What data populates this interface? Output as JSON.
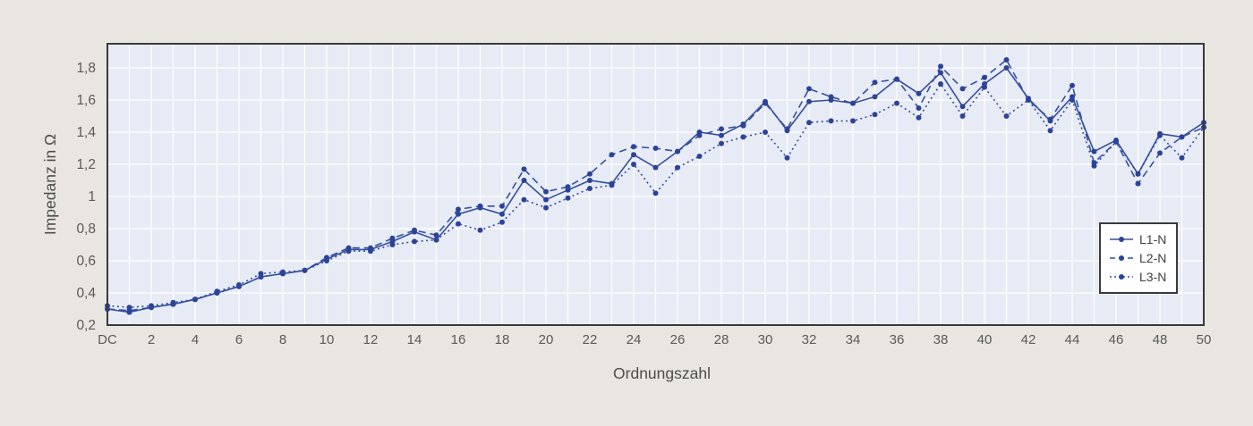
{
  "page": {
    "background_color": "#e9e6e2"
  },
  "chart_data": {
    "type": "line",
    "title": "",
    "xlabel": "Ordnungszahl",
    "ylabel": "Impedanz in Ω",
    "x": [
      0,
      1,
      2,
      3,
      4,
      5,
      6,
      7,
      8,
      9,
      10,
      11,
      12,
      13,
      14,
      15,
      16,
      17,
      18,
      19,
      20,
      21,
      22,
      23,
      24,
      25,
      26,
      27,
      28,
      29,
      30,
      31,
      32,
      33,
      34,
      35,
      36,
      37,
      38,
      39,
      40,
      41,
      42,
      43,
      44,
      45,
      46,
      47,
      48,
      49,
      50
    ],
    "x_tick_positions": [
      0,
      2,
      4,
      6,
      8,
      10,
      12,
      14,
      16,
      18,
      20,
      22,
      24,
      26,
      28,
      30,
      32,
      34,
      36,
      38,
      40,
      42,
      44,
      46,
      48,
      50
    ],
    "x_tick_labels": [
      "DC",
      "2",
      "4",
      "6",
      "8",
      "10",
      "12",
      "14",
      "16",
      "18",
      "20",
      "22",
      "24",
      "26",
      "28",
      "30",
      "32",
      "34",
      "36",
      "38",
      "40",
      "42",
      "44",
      "46",
      "48",
      "50"
    ],
    "y_tick_values": [
      0.2,
      0.4,
      0.6,
      0.8,
      1.0,
      1.2,
      1.4,
      1.6,
      1.8
    ],
    "y_tick_labels": [
      "0,2",
      "0,4",
      "0,6",
      "0,8",
      "1",
      "1,2",
      "1,4",
      "1,6",
      "1,8"
    ],
    "ylim": [
      0.2,
      1.95
    ],
    "xlim": [
      0,
      50
    ],
    "grid": {
      "vertical_step": 1,
      "horizontal_step": 0.2,
      "color": "#ffffff",
      "visible": true
    },
    "legend": {
      "position": "inside-right",
      "entries": [
        "L1-N",
        "L2-N",
        "L3-N"
      ]
    },
    "series": [
      {
        "name": "L1-N",
        "line_style": "solid",
        "values": [
          0.3,
          0.28,
          0.31,
          0.33,
          0.36,
          0.4,
          0.44,
          0.5,
          0.52,
          0.54,
          0.61,
          0.67,
          0.67,
          0.72,
          0.78,
          0.73,
          0.89,
          0.93,
          0.89,
          1.1,
          0.98,
          1.04,
          1.1,
          1.08,
          1.26,
          1.18,
          1.28,
          1.4,
          1.38,
          1.45,
          1.59,
          1.41,
          1.59,
          1.6,
          1.58,
          1.62,
          1.73,
          1.64,
          1.77,
          1.56,
          1.7,
          1.8,
          1.61,
          1.47,
          1.62,
          1.28,
          1.35,
          1.14,
          1.39,
          1.37,
          1.46
        ]
      },
      {
        "name": "L2-N",
        "line_style": "dashed",
        "values": [
          0.3,
          0.29,
          0.31,
          0.33,
          0.36,
          0.4,
          0.44,
          0.5,
          0.52,
          0.54,
          0.62,
          0.68,
          0.68,
          0.74,
          0.79,
          0.76,
          0.92,
          0.94,
          0.94,
          1.17,
          1.03,
          1.06,
          1.14,
          1.26,
          1.31,
          1.3,
          1.28,
          1.38,
          1.42,
          1.44,
          1.58,
          1.42,
          1.67,
          1.62,
          1.58,
          1.71,
          1.73,
          1.55,
          1.81,
          1.67,
          1.74,
          1.85,
          1.6,
          1.48,
          1.69,
          1.21,
          1.34,
          1.08,
          1.27,
          1.37,
          1.43
        ]
      },
      {
        "name": "L3-N",
        "line_style": "dotted",
        "values": [
          0.32,
          0.31,
          0.32,
          0.34,
          0.36,
          0.41,
          0.45,
          0.52,
          0.53,
          0.54,
          0.6,
          0.66,
          0.66,
          0.7,
          0.72,
          0.73,
          0.83,
          0.79,
          0.84,
          0.98,
          0.93,
          0.99,
          1.05,
          1.07,
          1.2,
          1.02,
          1.18,
          1.25,
          1.33,
          1.37,
          1.4,
          1.24,
          1.46,
          1.47,
          1.47,
          1.51,
          1.58,
          1.49,
          1.7,
          1.5,
          1.68,
          1.5,
          1.6,
          1.41,
          1.6,
          1.19,
          1.34,
          1.14,
          1.38,
          1.24,
          1.43
        ]
      }
    ],
    "colors": {
      "line": "#35509e",
      "marker": "#2c4497",
      "plot_background": "#e7ebf5",
      "plot_border": "#3a3a3a",
      "tick_text": "#595959",
      "axis_label_text": "#4d4d4d"
    }
  }
}
